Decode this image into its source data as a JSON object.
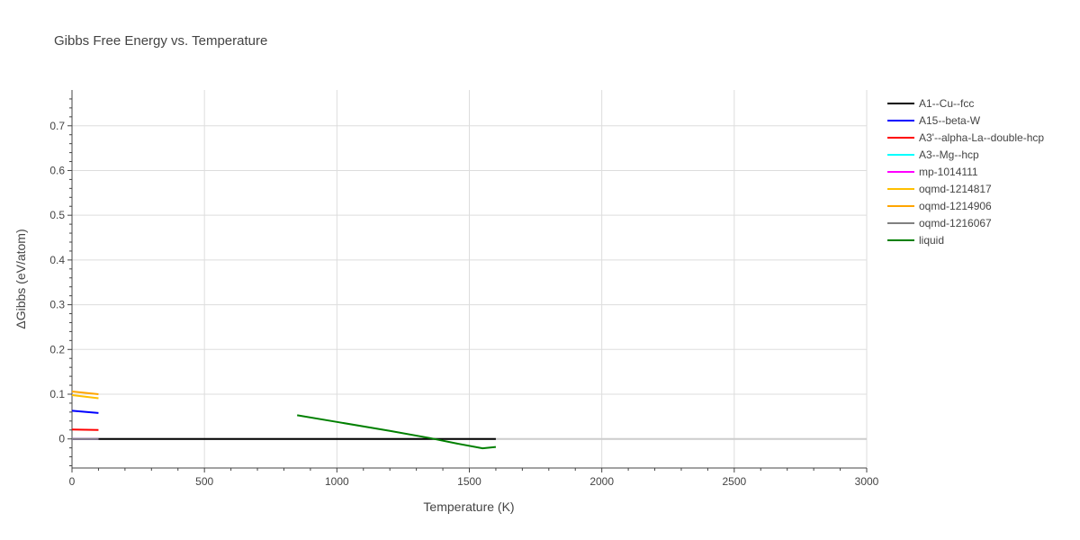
{
  "chart_data": {
    "type": "line",
    "title": "Gibbs Free Energy vs. Temperature",
    "xlabel": "Temperature (K)",
    "ylabel": "ΔGibbs (eV/atom)",
    "xlim": [
      0,
      3000
    ],
    "ylim": [
      -0.065,
      0.78
    ],
    "x_ticks": [
      0,
      500,
      1000,
      1500,
      2000,
      2500,
      3000
    ],
    "x_tick_labels": [
      "0",
      "500",
      "1000",
      "1500",
      "2000",
      "2500",
      "3000"
    ],
    "y_ticks": [
      0,
      0.1,
      0.2,
      0.3,
      0.4,
      0.5,
      0.6,
      0.7
    ],
    "y_tick_labels": [
      "0",
      "0.1",
      "0.2",
      "0.3",
      "0.4",
      "0.5",
      "0.6",
      "0.7"
    ],
    "grid": true,
    "legend_position": "right",
    "series": [
      {
        "name": "A1--Cu--fcc",
        "color": "#000000",
        "x": [
          0,
          1600
        ],
        "y": [
          0,
          0
        ]
      },
      {
        "name": "A15--beta-W",
        "color": "#0000ff",
        "x": [
          0,
          100
        ],
        "y": [
          0.063,
          0.058
        ]
      },
      {
        "name": "A3'--alpha-La--double-hcp",
        "color": "#ff0000",
        "x": [
          0,
          100
        ],
        "y": [
          0.021,
          0.02
        ]
      },
      {
        "name": "A3--Mg--hcp",
        "color": "#00ffff",
        "x": [
          0,
          100
        ],
        "y": [
          0.0,
          0.0
        ]
      },
      {
        "name": "mp-1014111",
        "color": "#ff00ff",
        "x": [
          0,
          100
        ],
        "y": [
          0.0,
          0.0
        ]
      },
      {
        "name": "oqmd-1214817",
        "color": "#ffbf00",
        "x": [
          0,
          100
        ],
        "y": [
          0.098,
          0.091
        ]
      },
      {
        "name": "oqmd-1214906",
        "color": "#ffa500",
        "x": [
          0,
          100
        ],
        "y": [
          0.106,
          0.1
        ]
      },
      {
        "name": "oqmd-1216067",
        "color": "#808080",
        "x": [
          0,
          100
        ],
        "y": [
          0.0,
          0.0
        ]
      },
      {
        "name": "liquid",
        "color": "#008000",
        "x": [
          850,
          1000,
          1200,
          1350,
          1450,
          1550,
          1600
        ],
        "y": [
          0.053,
          0.038,
          0.018,
          0.002,
          -0.01,
          -0.021,
          -0.018
        ]
      }
    ]
  }
}
